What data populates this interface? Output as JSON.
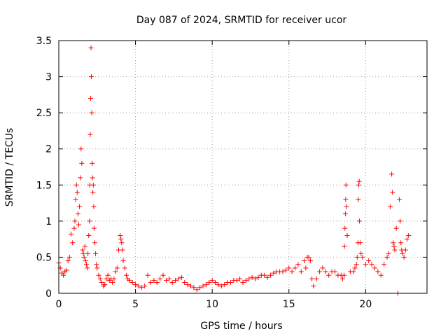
{
  "chart_data": {
    "type": "scatter",
    "title": "Day 087 of 2024, SRMTID for receiver ucor",
    "xlabel": "GPS time / hours",
    "ylabel": "SRMTID / TECUs",
    "xlim": [
      0,
      24
    ],
    "ylim": [
      0,
      3.5
    ],
    "xticks": [
      0,
      5,
      10,
      15,
      20
    ],
    "yticks": [
      0,
      0.5,
      1,
      1.5,
      2,
      2.5,
      3,
      3.5
    ],
    "xtick_labels": [
      "0",
      "5",
      "10",
      "15",
      "20"
    ],
    "ytick_labels": [
      "0",
      "0.5",
      "1",
      "1.5",
      "2",
      "2.5",
      "3",
      "3.5"
    ],
    "marker": "+",
    "color": "#ff0000",
    "grid": true,
    "series": [
      {
        "name": "SRMTID",
        "x": [
          0.0,
          0.1,
          0.2,
          0.3,
          0.4,
          0.5,
          0.6,
          0.7,
          0.8,
          0.9,
          1.0,
          1.05,
          1.1,
          1.15,
          1.2,
          1.25,
          1.3,
          1.35,
          1.4,
          1.45,
          1.5,
          1.55,
          1.6,
          1.65,
          1.7,
          1.75,
          1.8,
          1.85,
          1.9,
          1.95,
          2.0,
          2.02,
          2.05,
          2.08,
          2.1,
          2.12,
          2.15,
          2.18,
          2.2,
          2.22,
          2.25,
          2.28,
          2.3,
          2.35,
          2.4,
          2.45,
          2.5,
          2.6,
          2.7,
          2.8,
          2.9,
          3.0,
          3.1,
          3.2,
          3.3,
          3.4,
          3.5,
          3.6,
          3.7,
          3.8,
          3.9,
          4.0,
          4.05,
          4.1,
          4.15,
          4.2,
          4.3,
          4.4,
          4.5,
          4.6,
          4.8,
          5.0,
          5.2,
          5.4,
          5.6,
          5.8,
          6.0,
          6.2,
          6.4,
          6.6,
          6.8,
          7.0,
          7.2,
          7.4,
          7.6,
          7.8,
          8.0,
          8.2,
          8.4,
          8.6,
          8.8,
          9.0,
          9.2,
          9.4,
          9.6,
          9.8,
          10.0,
          10.2,
          10.4,
          10.6,
          10.8,
          11.0,
          11.2,
          11.4,
          11.6,
          11.8,
          12.0,
          12.2,
          12.4,
          12.6,
          12.8,
          13.0,
          13.2,
          13.4,
          13.6,
          13.8,
          14.0,
          14.2,
          14.4,
          14.6,
          14.8,
          15.0,
          15.2,
          15.4,
          15.6,
          15.8,
          16.0,
          16.1,
          16.2,
          16.3,
          16.4,
          16.5,
          16.6,
          16.8,
          17.0,
          17.2,
          17.4,
          17.6,
          17.8,
          18.0,
          18.2,
          18.4,
          18.5,
          18.6,
          18.62,
          18.65,
          18.68,
          18.7,
          18.72,
          18.75,
          18.8,
          19.0,
          19.2,
          19.3,
          19.4,
          19.45,
          19.5,
          19.52,
          19.55,
          19.58,
          19.6,
          19.65,
          19.7,
          19.8,
          20.0,
          20.2,
          20.4,
          20.6,
          20.8,
          21.0,
          21.2,
          21.4,
          21.5,
          21.6,
          21.7,
          21.75,
          21.8,
          21.85,
          21.9,
          22.0,
          22.1,
          22.2,
          22.25,
          22.3,
          22.35,
          22.4,
          22.5,
          22.6,
          22.7,
          22.8
        ],
        "y": [
          0.42,
          0.35,
          0.28,
          0.25,
          0.3,
          0.32,
          0.45,
          0.5,
          0.82,
          0.7,
          0.9,
          1.0,
          1.3,
          1.5,
          1.4,
          1.1,
          0.95,
          1.2,
          1.6,
          2.0,
          1.8,
          0.6,
          0.55,
          0.5,
          0.65,
          0.45,
          0.4,
          0.35,
          0.55,
          0.8,
          1.0,
          1.5,
          2.2,
          2.7,
          3.4,
          3.0,
          2.5,
          1.8,
          1.6,
          1.4,
          1.5,
          1.2,
          0.9,
          0.7,
          0.55,
          0.4,
          0.35,
          0.25,
          0.2,
          0.15,
          0.1,
          0.12,
          0.2,
          0.25,
          0.18,
          0.2,
          0.15,
          0.2,
          0.3,
          0.35,
          0.6,
          0.8,
          0.75,
          0.7,
          0.6,
          0.45,
          0.35,
          0.25,
          0.2,
          0.18,
          0.15,
          0.12,
          0.1,
          0.08,
          0.1,
          0.25,
          0.15,
          0.18,
          0.15,
          0.2,
          0.25,
          0.18,
          0.2,
          0.15,
          0.18,
          0.2,
          0.22,
          0.15,
          0.12,
          0.1,
          0.08,
          0.05,
          0.08,
          0.1,
          0.12,
          0.15,
          0.18,
          0.15,
          0.12,
          0.1,
          0.12,
          0.15,
          0.15,
          0.18,
          0.18,
          0.2,
          0.15,
          0.18,
          0.2,
          0.22,
          0.2,
          0.22,
          0.25,
          0.25,
          0.22,
          0.25,
          0.28,
          0.3,
          0.3,
          0.3,
          0.32,
          0.35,
          0.3,
          0.35,
          0.4,
          0.3,
          0.45,
          0.35,
          0.5,
          0.5,
          0.45,
          0.2,
          0.1,
          0.2,
          0.3,
          0.35,
          0.3,
          0.25,
          0.3,
          0.3,
          0.25,
          0.25,
          0.2,
          0.25,
          0.65,
          0.9,
          1.1,
          1.3,
          1.5,
          1.2,
          0.8,
          0.3,
          0.3,
          0.35,
          0.4,
          0.5,
          0.7,
          1.3,
          1.5,
          1.55,
          1.0,
          0.7,
          0.55,
          0.5,
          0.4,
          0.45,
          0.4,
          0.35,
          0.3,
          0.25,
          0.4,
          0.5,
          0.55,
          1.2,
          1.65,
          1.4,
          0.7,
          0.65,
          0.6,
          0.9,
          0.0,
          1.3,
          1.0,
          0.7,
          0.6,
          0.55,
          0.5,
          0.6,
          0.75,
          0.8
        ]
      }
    ]
  }
}
